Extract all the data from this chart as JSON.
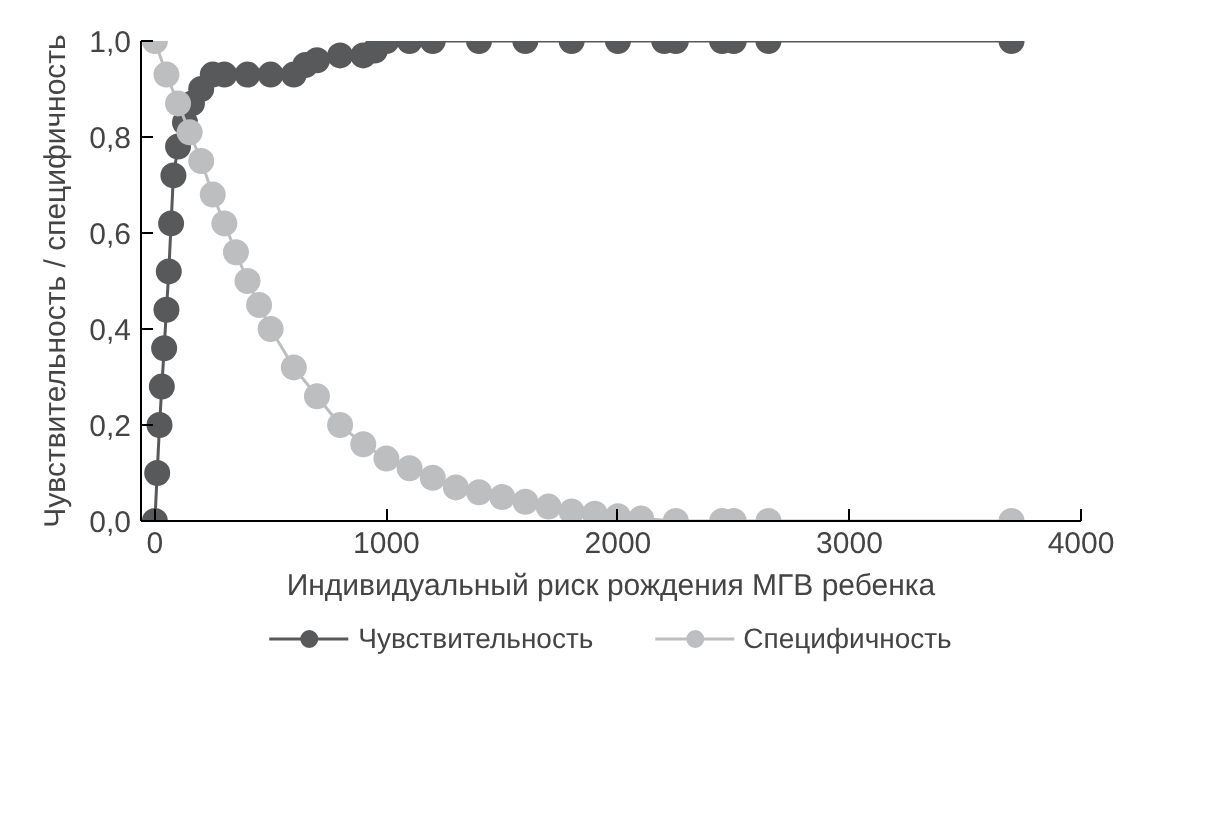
{
  "chart_data": {
    "type": "line",
    "xlabel": "Индивидуальный риск рождения МГВ ребенка",
    "ylabel": "Чувствительность / специфичность",
    "xlim": [
      -60,
      4000
    ],
    "ylim": [
      0,
      1.0
    ],
    "xticks": [
      0,
      1000,
      2000,
      3000,
      4000
    ],
    "yticks": [
      {
        "value": 0,
        "label": "0,0"
      },
      {
        "value": 0.2,
        "label": "0,2"
      },
      {
        "value": 0.4,
        "label": "0,4"
      },
      {
        "value": 0.6,
        "label": "0,6"
      },
      {
        "value": 0.8,
        "label": "0,8"
      },
      {
        "value": 1.0,
        "label": "1,0"
      }
    ],
    "grid": false,
    "legend": "bottom",
    "marker": "circle",
    "line_style": "solid",
    "series": [
      {
        "name": "Чувствительность",
        "color": "#58595b",
        "x": [
          0,
          10,
          20,
          30,
          40,
          50,
          60,
          70,
          80,
          100,
          130,
          160,
          200,
          250,
          300,
          400,
          500,
          600,
          650,
          700,
          800,
          900,
          950,
          1000,
          1100,
          1200,
          1400,
          1600,
          1800,
          2000,
          2200,
          2250,
          2450,
          2500,
          2650,
          3700
        ],
        "values": [
          0,
          0.1,
          0.2,
          0.28,
          0.36,
          0.44,
          0.52,
          0.62,
          0.72,
          0.78,
          0.83,
          0.87,
          0.9,
          0.93,
          0.93,
          0.93,
          0.93,
          0.93,
          0.95,
          0.96,
          0.97,
          0.97,
          0.98,
          1.0,
          1.0,
          1.0,
          1.0,
          1.0,
          1.0,
          1.0,
          1.0,
          1.0,
          1.0,
          1.0,
          1.0,
          1.0
        ]
      },
      {
        "name": "Специфичность",
        "color": "#bcbec0",
        "x": [
          0,
          50,
          100,
          150,
          200,
          250,
          300,
          350,
          400,
          450,
          500,
          600,
          700,
          800,
          900,
          1000,
          1100,
          1200,
          1300,
          1400,
          1500,
          1600,
          1700,
          1800,
          1900,
          2000,
          2100,
          2250,
          2450,
          2500,
          2650,
          3700
        ],
        "values": [
          1.0,
          0.93,
          0.87,
          0.81,
          0.75,
          0.68,
          0.62,
          0.56,
          0.5,
          0.45,
          0.4,
          0.32,
          0.26,
          0.2,
          0.16,
          0.13,
          0.11,
          0.09,
          0.07,
          0.06,
          0.05,
          0.04,
          0.03,
          0.02,
          0.015,
          0.01,
          0.005,
          0,
          0,
          0,
          0,
          0
        ]
      }
    ]
  }
}
